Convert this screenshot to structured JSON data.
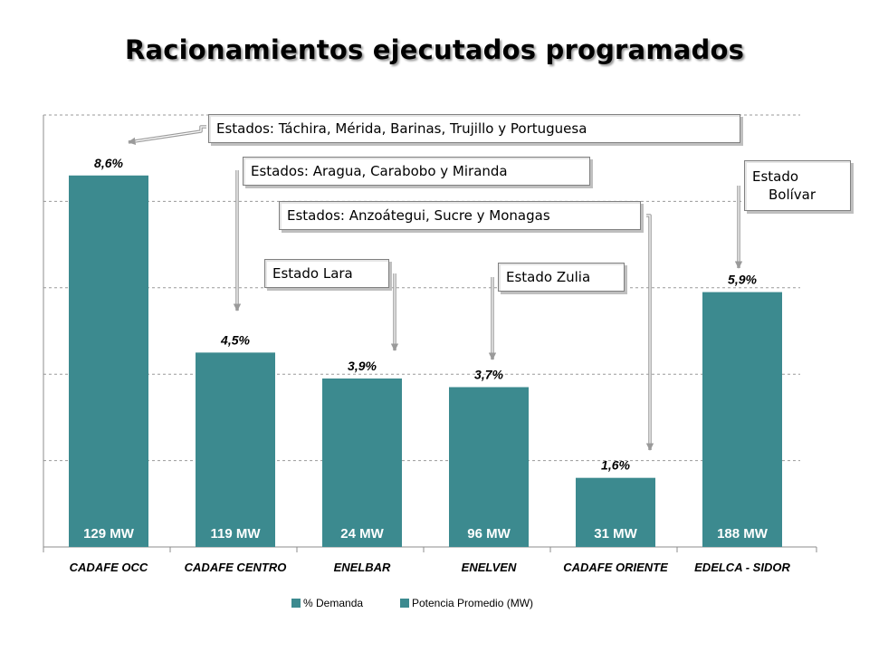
{
  "title": "Racionamientos ejecutados programados",
  "chart_data": {
    "type": "bar",
    "categories": [
      "CADAFE OCC",
      "CADAFE CENTRO",
      "ENELBAR",
      "ENELVEN",
      "CADAFE ORIENTE",
      "EDELCA - SIDOR"
    ],
    "series": [
      {
        "name": "% Demanda",
        "values": [
          8.6,
          4.5,
          3.9,
          3.7,
          1.6,
          5.9
        ],
        "labels": [
          "8,6%",
          "4,5%",
          "3,9%",
          "3,7%",
          "1,6%",
          "5,9%"
        ]
      },
      {
        "name": "Potencia Promedio (MW)",
        "values": [
          129,
          119,
          24,
          96,
          31,
          188
        ],
        "labels": [
          "129 MW",
          "119 MW",
          "24 MW",
          "96 MW",
          "31 MW",
          "188 MW"
        ]
      }
    ],
    "ylim": [
      0,
      10
    ],
    "grid": true,
    "legend": "bottom",
    "bar_color": "#3c8a8f"
  },
  "callouts": [
    {
      "text": "Estados: Táchira, Mérida, Barinas, Trujillo y Portuguesa"
    },
    {
      "text": "Estados: Aragua, Carabobo y Miranda"
    },
    {
      "text": "Estados: Anzoátegui, Sucre y Monagas"
    },
    {
      "text": "Estado Lara"
    },
    {
      "text": "Estado Zulia"
    },
    {
      "text_line1": "Estado",
      "text_line2": "Bolívar"
    }
  ]
}
